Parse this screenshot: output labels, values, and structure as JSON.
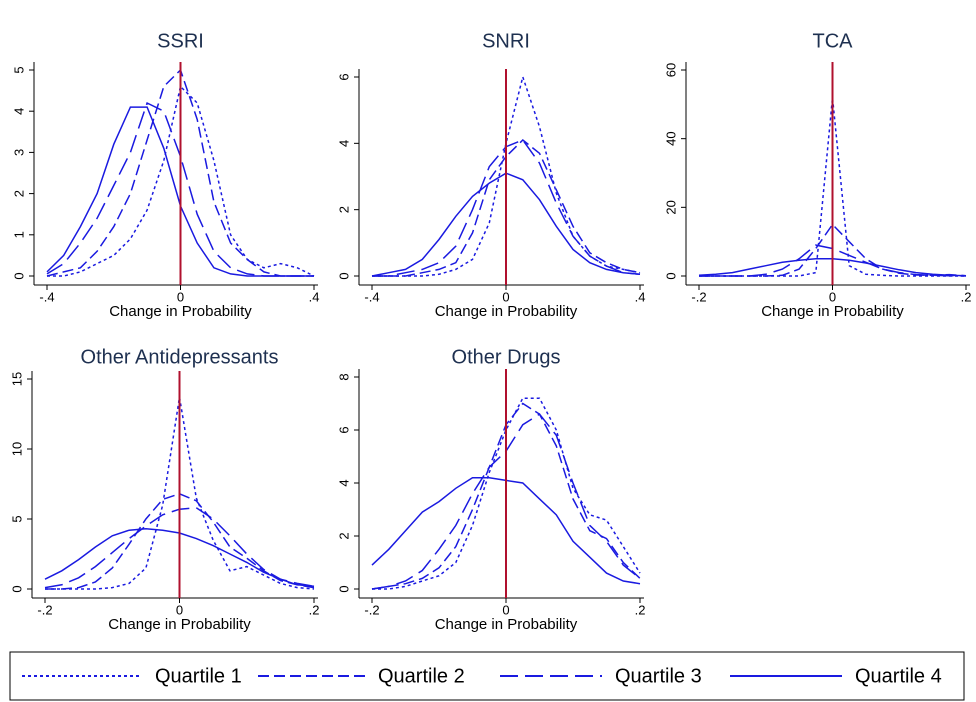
{
  "chart_data": [
    {
      "type": "line",
      "title": "SSRI",
      "xlabel": "Change in Probability",
      "x": [
        -0.4,
        -0.35,
        -0.3,
        -0.25,
        -0.2,
        -0.15,
        -0.1,
        -0.05,
        0,
        0.05,
        0.1,
        0.15,
        0.2,
        0.25,
        0.3,
        0.35,
        0.4
      ],
      "xlim": [
        -0.4,
        0.4
      ],
      "xticks": [
        {
          "value": -0.4,
          "label": "-.4"
        },
        0,
        {
          "value": 0.4,
          "label": ".4"
        }
      ],
      "ylim": [
        0,
        5
      ],
      "yticks": [
        0,
        1,
        2,
        3,
        4,
        5
      ],
      "xline": 0,
      "xline_color": "#b0102e",
      "series": [
        {
          "values": [
            0,
            0,
            0.1,
            0.3,
            0.5,
            0.9,
            1.6,
            2.8,
            4.6,
            4.2,
            2.8,
            1.0,
            0.4,
            0.2,
            0.3,
            0.2,
            0
          ]
        },
        {
          "values": [
            0,
            0.1,
            0.2,
            0.6,
            1.2,
            2.0,
            3.3,
            4.6,
            5.0,
            3.8,
            1.8,
            0.8,
            0.4,
            0.1,
            0,
            0,
            0
          ]
        },
        {
          "values": [
            0.05,
            0.3,
            0.8,
            1.4,
            2.2,
            3.0,
            4.2,
            4.0,
            2.9,
            1.5,
            0.6,
            0.2,
            0.05,
            0,
            0,
            0,
            0
          ]
        },
        {
          "values": [
            0.1,
            0.5,
            1.2,
            2.0,
            3.2,
            4.1,
            4.1,
            3.1,
            1.7,
            0.8,
            0.2,
            0.05,
            0,
            0,
            0,
            0,
            0
          ]
        }
      ]
    },
    {
      "type": "line",
      "title": "SNRI",
      "xlabel": "Change in Probability",
      "x": [
        -0.4,
        -0.35,
        -0.3,
        -0.25,
        -0.2,
        -0.15,
        -0.1,
        -0.05,
        0,
        0.05,
        0.1,
        0.15,
        0.2,
        0.25,
        0.3,
        0.35,
        0.4
      ],
      "xlim": [
        -0.4,
        0.4
      ],
      "xticks": [
        {
          "value": -0.4,
          "label": "-.4"
        },
        0,
        {
          "value": 0.4,
          "label": ".4"
        }
      ],
      "ylim": [
        0,
        6
      ],
      "yticks": [
        0,
        2,
        4,
        6
      ],
      "xline": 0,
      "xline_color": "#b0102e",
      "series": [
        {
          "values": [
            0,
            0,
            0,
            0,
            0.05,
            0.2,
            0.5,
            1.6,
            4.0,
            6.0,
            4.5,
            2.5,
            1.2,
            0.6,
            0.3,
            0.2,
            0.1
          ]
        },
        {
          "values": [
            0,
            0,
            0,
            0.1,
            0.2,
            0.4,
            1.3,
            2.9,
            3.6,
            4.1,
            3.7,
            2.6,
            1.5,
            0.7,
            0.4,
            0.2,
            0.1
          ]
        },
        {
          "values": [
            0,
            0,
            0.1,
            0.2,
            0.4,
            0.9,
            2.0,
            3.3,
            3.9,
            4.1,
            3.4,
            2.2,
            1.2,
            0.6,
            0.3,
            0.1,
            0.05
          ]
        },
        {
          "values": [
            0,
            0.1,
            0.2,
            0.5,
            1.1,
            1.8,
            2.4,
            2.8,
            3.1,
            2.9,
            2.3,
            1.5,
            0.8,
            0.4,
            0.2,
            0.1,
            0.05
          ]
        }
      ]
    },
    {
      "type": "line",
      "title": "TCA",
      "xlabel": "Change in Probability",
      "x": [
        -0.2,
        -0.175,
        -0.15,
        -0.125,
        -0.1,
        -0.075,
        -0.05,
        -0.025,
        0,
        0.025,
        0.05,
        0.075,
        0.1,
        0.125,
        0.15,
        0.175,
        0.2
      ],
      "xlim": [
        -0.2,
        0.2
      ],
      "xticks": [
        {
          "value": -0.2,
          "label": "-.2"
        },
        0,
        {
          "value": 0.2,
          "label": ".2"
        }
      ],
      "ylim": [
        0,
        60
      ],
      "yticks": [
        0,
        20,
        40,
        60
      ],
      "xline": 0,
      "xline_color": "#b0102e",
      "series": [
        {
          "values": [
            0,
            0,
            0,
            0,
            0,
            0,
            0,
            1,
            52,
            3,
            0.5,
            0.2,
            0,
            0,
            0,
            0,
            0
          ]
        },
        {
          "values": [
            0,
            0,
            0,
            0,
            0,
            0.2,
            2,
            8,
            15,
            10,
            5,
            2,
            0.8,
            0.3,
            0.2,
            0.4,
            0.1
          ]
        },
        {
          "values": [
            0,
            0,
            0,
            0,
            0.5,
            2,
            5,
            9,
            8,
            6,
            4,
            2,
            1,
            0.4,
            0.2,
            0.1,
            0
          ]
        },
        {
          "values": [
            0.2,
            0.5,
            1,
            2,
            3,
            4,
            4.6,
            5,
            5,
            4.6,
            3.8,
            2.8,
            1.8,
            1,
            0.5,
            0.2,
            0.1
          ]
        }
      ]
    },
    {
      "type": "line",
      "title": "Other Antidepressants",
      "xlabel": "Change in Probability",
      "x": [
        -0.2,
        -0.175,
        -0.15,
        -0.125,
        -0.1,
        -0.075,
        -0.05,
        -0.025,
        0,
        0.025,
        0.05,
        0.075,
        0.1,
        0.125,
        0.15,
        0.175,
        0.2
      ],
      "xlim": [
        -0.2,
        0.2
      ],
      "xticks": [
        {
          "value": -0.2,
          "label": "-.2"
        },
        0,
        {
          "value": 0.2,
          "label": ".2"
        }
      ],
      "ylim": [
        0,
        15
      ],
      "yticks": [
        0,
        5,
        10,
        15
      ],
      "xline": 0,
      "xline_color": "#b0102e",
      "series": [
        {
          "values": [
            0,
            0,
            0,
            0,
            0.1,
            0.4,
            1.5,
            6,
            13.7,
            6.5,
            3.5,
            1.3,
            1.6,
            1.0,
            0.4,
            0.1,
            0
          ]
        },
        {
          "values": [
            0,
            0,
            0.1,
            0.5,
            1.5,
            3.2,
            5.0,
            6.4,
            6.8,
            6.3,
            4.8,
            3.0,
            2.2,
            1.3,
            0.6,
            0.3,
            0.1
          ]
        },
        {
          "values": [
            0.1,
            0.3,
            0.8,
            1.6,
            2.6,
            3.6,
            4.5,
            5.3,
            5.7,
            5.8,
            5.0,
            3.8,
            2.5,
            1.4,
            0.7,
            0.4,
            0.2
          ]
        },
        {
          "values": [
            0.7,
            1.3,
            2.1,
            3.0,
            3.8,
            4.2,
            4.3,
            4.2,
            4.0,
            3.6,
            3.1,
            2.5,
            1.9,
            1.2,
            0.7,
            0.3,
            0.2
          ]
        }
      ]
    },
    {
      "type": "line",
      "title": "Other Drugs",
      "xlabel": "Change in Probability",
      "x": [
        -0.2,
        -0.175,
        -0.15,
        -0.125,
        -0.1,
        -0.075,
        -0.05,
        -0.025,
        0,
        0.025,
        0.05,
        0.075,
        0.1,
        0.125,
        0.15,
        0.175,
        0.2
      ],
      "xlim": [
        -0.2,
        0.2
      ],
      "xticks": [
        {
          "value": -0.2,
          "label": "-.2"
        },
        0,
        {
          "value": 0.2,
          "label": ".2"
        }
      ],
      "ylim": [
        0,
        8
      ],
      "yticks": [
        0,
        2,
        4,
        6,
        8
      ],
      "xline": 0,
      "xline_color": "#b0102e",
      "series": [
        {
          "values": [
            0,
            0,
            0.1,
            0.3,
            0.5,
            1.0,
            2.4,
            4.4,
            6.0,
            7.2,
            7.2,
            6.0,
            3.8,
            2.8,
            2.6,
            1.6,
            0.6
          ]
        },
        {
          "values": [
            0,
            0.1,
            0.2,
            0.4,
            0.8,
            1.6,
            3.0,
            4.6,
            6.2,
            7.0,
            6.6,
            5.4,
            3.4,
            2.2,
            1.9,
            1.0,
            0.4
          ]
        },
        {
          "values": [
            0,
            0.1,
            0.3,
            0.7,
            1.5,
            2.4,
            3.6,
            4.6,
            5.2,
            6.2,
            6.6,
            5.8,
            4.0,
            2.4,
            1.8,
            0.9,
            0.4
          ]
        },
        {
          "values": [
            0.9,
            1.5,
            2.2,
            2.9,
            3.3,
            3.8,
            4.2,
            4.2,
            4.1,
            4.0,
            3.4,
            2.8,
            1.8,
            1.2,
            0.6,
            0.3,
            0.2
          ]
        }
      ]
    }
  ],
  "legend": [
    {
      "name": "Quartile 1",
      "color": "#1a1ae0",
      "dash": "3,3"
    },
    {
      "name": "Quartile 2",
      "color": "#1a1ae0",
      "dash": "11,5"
    },
    {
      "name": "Quartile 3",
      "color": "#1a1ae0",
      "dash": "18,7"
    },
    {
      "name": "Quartile 4",
      "color": "#1a1ae0",
      "dash": "solid"
    }
  ]
}
